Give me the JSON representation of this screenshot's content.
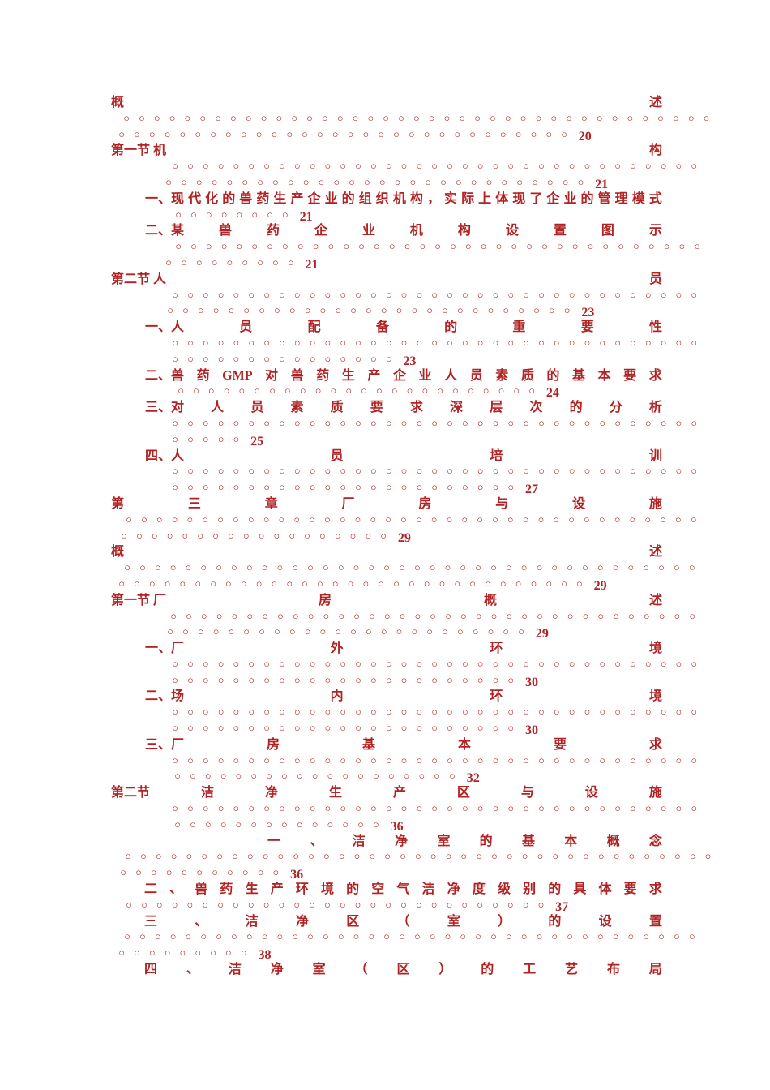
{
  "page": {
    "background": "#ffffff",
    "text_color": "#b22222",
    "dot_char": "◦"
  },
  "toc": {
    "lines": [
      {
        "kind": "spread",
        "tokens": [
          "概",
          "述"
        ],
        "indent": 0
      },
      {
        "kind": "leader",
        "dots": 39,
        "indent": 14
      },
      {
        "kind": "leader",
        "dots": 30,
        "page": "20",
        "indent": 8
      },
      {
        "kind": "spread",
        "tokens": [
          "第一节 机",
          "构"
        ],
        "indent": 0
      },
      {
        "kind": "leader",
        "dots": 35,
        "indent": 74
      },
      {
        "kind": "leader",
        "dots": 28,
        "page": "21",
        "indent": 66
      },
      {
        "kind": "spread",
        "tokens": [
          "一、现",
          "代",
          "化",
          "的",
          "兽",
          "药",
          "生",
          "产",
          "企",
          "业",
          "的",
          "组",
          "织",
          "机",
          "构",
          "，",
          "实",
          "际",
          "上",
          "体",
          "现",
          "了",
          "企",
          "业",
          "的",
          "管",
          "理",
          "模",
          "式"
        ],
        "indent": 42
      },
      {
        "kind": "leader",
        "dots": 8,
        "page": "21",
        "indent": 78
      },
      {
        "kind": "spread",
        "tokens": [
          "二、某",
          "兽",
          "药",
          "企",
          "业",
          "机",
          "构",
          "设",
          "置",
          "图",
          "示"
        ],
        "indent": 42
      },
      {
        "kind": "leader",
        "dots": 35,
        "indent": 78
      },
      {
        "kind": "leader",
        "dots": 9,
        "page": "21",
        "indent": 66
      },
      {
        "kind": "spread",
        "tokens": [
          "第二节 人",
          "员"
        ],
        "indent": 0
      },
      {
        "kind": "leader",
        "dots": 35,
        "indent": 74
      },
      {
        "kind": "leader",
        "dots": 27,
        "page": "23",
        "indent": 68
      },
      {
        "kind": "spread",
        "tokens": [
          "一、人",
          "员",
          "配",
          "备",
          "的",
          "重",
          "要",
          "性"
        ],
        "indent": 42
      },
      {
        "kind": "leader",
        "dots": 35,
        "indent": 74
      },
      {
        "kind": "leader",
        "dots": 15,
        "page": "23",
        "indent": 74
      },
      {
        "kind": "spread",
        "tokens": [
          "二、兽",
          "药",
          "GMP",
          "对",
          "兽",
          "药",
          "生",
          "产",
          "企",
          "业",
          "人",
          "员",
          "素",
          "质",
          "的",
          "基",
          "本",
          "要",
          "求"
        ],
        "indent": 42
      },
      {
        "kind": "leader",
        "dots": 24,
        "page": "24",
        "indent": 81
      },
      {
        "kind": "spread",
        "tokens": [
          "三、对",
          "人",
          "员",
          "素",
          "质",
          "要",
          "求",
          "深",
          "层",
          "次",
          "的",
          "分",
          "析"
        ],
        "indent": 42
      },
      {
        "kind": "leader",
        "dots": 35,
        "indent": 74
      },
      {
        "kind": "leader",
        "dots": 5,
        "page": "25",
        "indent": 74
      },
      {
        "kind": "spread",
        "tokens": [
          "四、人",
          "员",
          "培",
          "训"
        ],
        "indent": 42
      },
      {
        "kind": "leader",
        "dots": 35,
        "indent": 74
      },
      {
        "kind": "leader",
        "dots": 23,
        "page": "27",
        "indent": 74
      },
      {
        "kind": "spread",
        "tokens": [
          "第",
          "三",
          "章",
          "厂",
          "房",
          "与",
          "设",
          "施"
        ],
        "indent": 0
      },
      {
        "kind": "leader",
        "dots": 38,
        "indent": 17
      },
      {
        "kind": "leader",
        "dots": 18,
        "page": "29",
        "indent": 11
      },
      {
        "kind": "spread",
        "tokens": [
          "概",
          "述"
        ],
        "indent": 0
      },
      {
        "kind": "leader",
        "dots": 38,
        "indent": 15
      },
      {
        "kind": "leader",
        "dots": 31,
        "page": "29",
        "indent": 8
      },
      {
        "kind": "spread",
        "tokens": [
          "第一节 厂",
          "房",
          "概",
          "述"
        ],
        "indent": 0
      },
      {
        "kind": "leader",
        "dots": 35,
        "indent": 72
      },
      {
        "kind": "leader",
        "dots": 24,
        "page": "29",
        "indent": 68
      },
      {
        "kind": "spread",
        "tokens": [
          "一、厂",
          "外",
          "环",
          "境"
        ],
        "indent": 42
      },
      {
        "kind": "leader",
        "dots": 35,
        "indent": 74
      },
      {
        "kind": "leader",
        "dots": 23,
        "page": "30",
        "indent": 74
      },
      {
        "kind": "spread",
        "tokens": [
          "二、场",
          "内",
          "环",
          "境"
        ],
        "indent": 42
      },
      {
        "kind": "leader",
        "dots": 35,
        "indent": 74
      },
      {
        "kind": "leader",
        "dots": 23,
        "page": "30",
        "indent": 74
      },
      {
        "kind": "spread",
        "tokens": [
          "三、厂",
          "房",
          "基",
          "本",
          "要",
          "求"
        ],
        "indent": 42
      },
      {
        "kind": "leader",
        "dots": 35,
        "indent": 74
      },
      {
        "kind": "leader",
        "dots": 19,
        "page": "32",
        "indent": 77
      },
      {
        "kind": "spread",
        "tokens": [
          "第二节",
          "洁",
          "净",
          "生",
          "产",
          "区",
          "与",
          "设",
          "施"
        ],
        "indent": 0
      },
      {
        "kind": "leader",
        "dots": 35,
        "indent": 74
      },
      {
        "kind": "leader",
        "dots": 14,
        "page": "36",
        "indent": 77
      },
      {
        "kind": "spread",
        "tokens": [
          "一",
          "、",
          "洁",
          "净",
          "室",
          "的",
          "基",
          "本",
          "概",
          "念"
        ],
        "indent": 193
      },
      {
        "kind": "leader",
        "dots": 39,
        "indent": 16
      },
      {
        "kind": "leader",
        "dots": 11,
        "page": "36",
        "indent": 10
      },
      {
        "kind": "spread",
        "tokens": [
          "二",
          "、",
          "兽",
          "药",
          "生",
          "产",
          "环",
          "境",
          "的",
          "空",
          "气",
          "洁",
          "净",
          "度",
          "级",
          "别",
          "的",
          "具",
          "体",
          "要",
          "求"
        ],
        "indent": 41
      },
      {
        "kind": "leader",
        "dots": 28,
        "page": "37",
        "indent": 17
      },
      {
        "kind": "spread",
        "tokens": [
          "三",
          "、",
          "洁",
          "净",
          "区",
          "（",
          "室",
          "）",
          "的",
          "设",
          "置"
        ],
        "indent": 41
      },
      {
        "kind": "leader",
        "dots": 38,
        "indent": 15
      },
      {
        "kind": "leader",
        "dots": 9,
        "page": "38",
        "indent": 8
      },
      {
        "kind": "spread",
        "tokens": [
          "四",
          "、",
          "洁",
          "净",
          "室",
          "（",
          "区",
          "）",
          "的",
          "工",
          "艺",
          "布",
          "局"
        ],
        "indent": 41
      }
    ]
  }
}
